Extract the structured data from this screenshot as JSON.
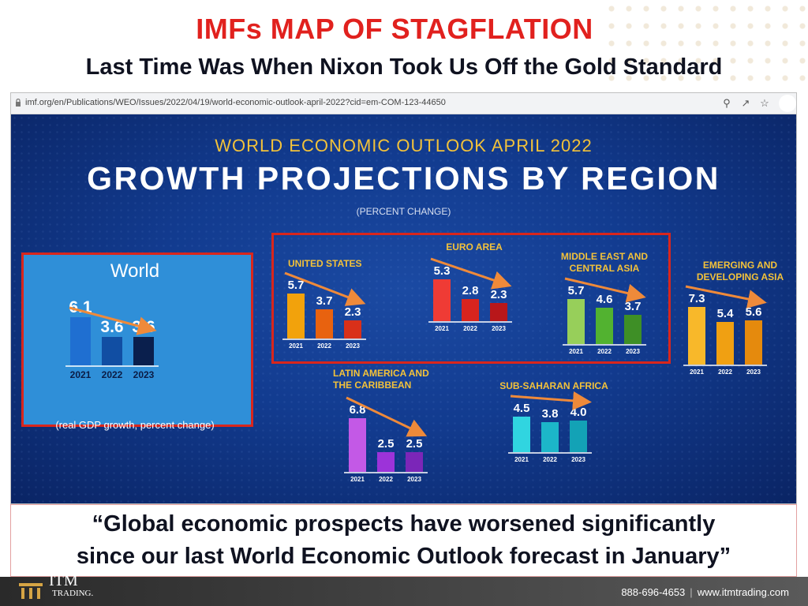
{
  "header": {
    "title": "IMFs MAP OF STAGFLATION",
    "subtitle": "Last Time Was When Nixon Took Us Off the Gold Standard"
  },
  "browser": {
    "url": "imf.org/en/Publications/WEO/Issues/2022/04/19/world-economic-outlook-april-2022?cid=em-COM-123-44650",
    "icons": [
      "zoom-icon",
      "share-icon",
      "star-icon",
      "reload-icon"
    ]
  },
  "slide": {
    "kicker": "WORLD ECONOMIC OUTLOOK APRIL 2022",
    "headline": "GROWTH PROJECTIONS BY REGION",
    "unit": "(PERCENT CHANGE)",
    "world_note": "(real GDP growth, percent change)"
  },
  "chart_data": {
    "type": "bar",
    "categories": [
      "2021",
      "2022",
      "2023"
    ],
    "panels": [
      {
        "id": "world",
        "title": "World",
        "values": [
          6.1,
          3.6,
          3.6
        ],
        "colors": [
          "#1f6fd1",
          "#114ea3",
          "#0a1f4d"
        ]
      },
      {
        "id": "us",
        "title": "UNITED STATES",
        "values": [
          5.7,
          3.7,
          2.3
        ],
        "colors": [
          "#f2a20c",
          "#e8620f",
          "#d9301a"
        ]
      },
      {
        "id": "euro",
        "title": "EURO AREA",
        "values": [
          5.3,
          2.8,
          2.3
        ],
        "colors": [
          "#ef3b35",
          "#d8241e",
          "#b8171a"
        ]
      },
      {
        "id": "meca",
        "title": "MIDDLE EAST AND CENTRAL ASIA",
        "values": [
          5.7,
          4.6,
          3.7
        ],
        "colors": [
          "#97cf5a",
          "#52b230",
          "#3e8f26"
        ]
      },
      {
        "id": "eda",
        "title": "EMERGING AND DEVELOPING ASIA",
        "values": [
          7.3,
          5.4,
          5.6
        ],
        "colors": [
          "#f8b82a",
          "#f0a012",
          "#e58a0d"
        ]
      },
      {
        "id": "lac",
        "title": "LATIN AMERICA AND THE CARIBBEAN",
        "values": [
          6.8,
          2.5,
          2.5
        ],
        "colors": [
          "#c359e6",
          "#9c33d9",
          "#7b26b8"
        ]
      },
      {
        "id": "ssa",
        "title": "SUB-SAHARAN AFRICA",
        "values": [
          4.5,
          3.8,
          4.0
        ],
        "colors": [
          "#30d5e0",
          "#1cb6c9",
          "#13a2b6"
        ]
      }
    ]
  },
  "quote": {
    "line1": "“Global economic prospects have worsened significantly",
    "line2": "since our last World Economic Outlook forecast in January”"
  },
  "footer": {
    "brand": "ITM",
    "brand_sub": "TRADING.",
    "phone": "888-696-4653",
    "website": "www.itmtrading.com"
  },
  "colors": {
    "title_red": "#e1211e",
    "slide_blue": "#123b8f",
    "arrow_orange": "#ef8a3a",
    "highlight_red": "#d9261c"
  }
}
